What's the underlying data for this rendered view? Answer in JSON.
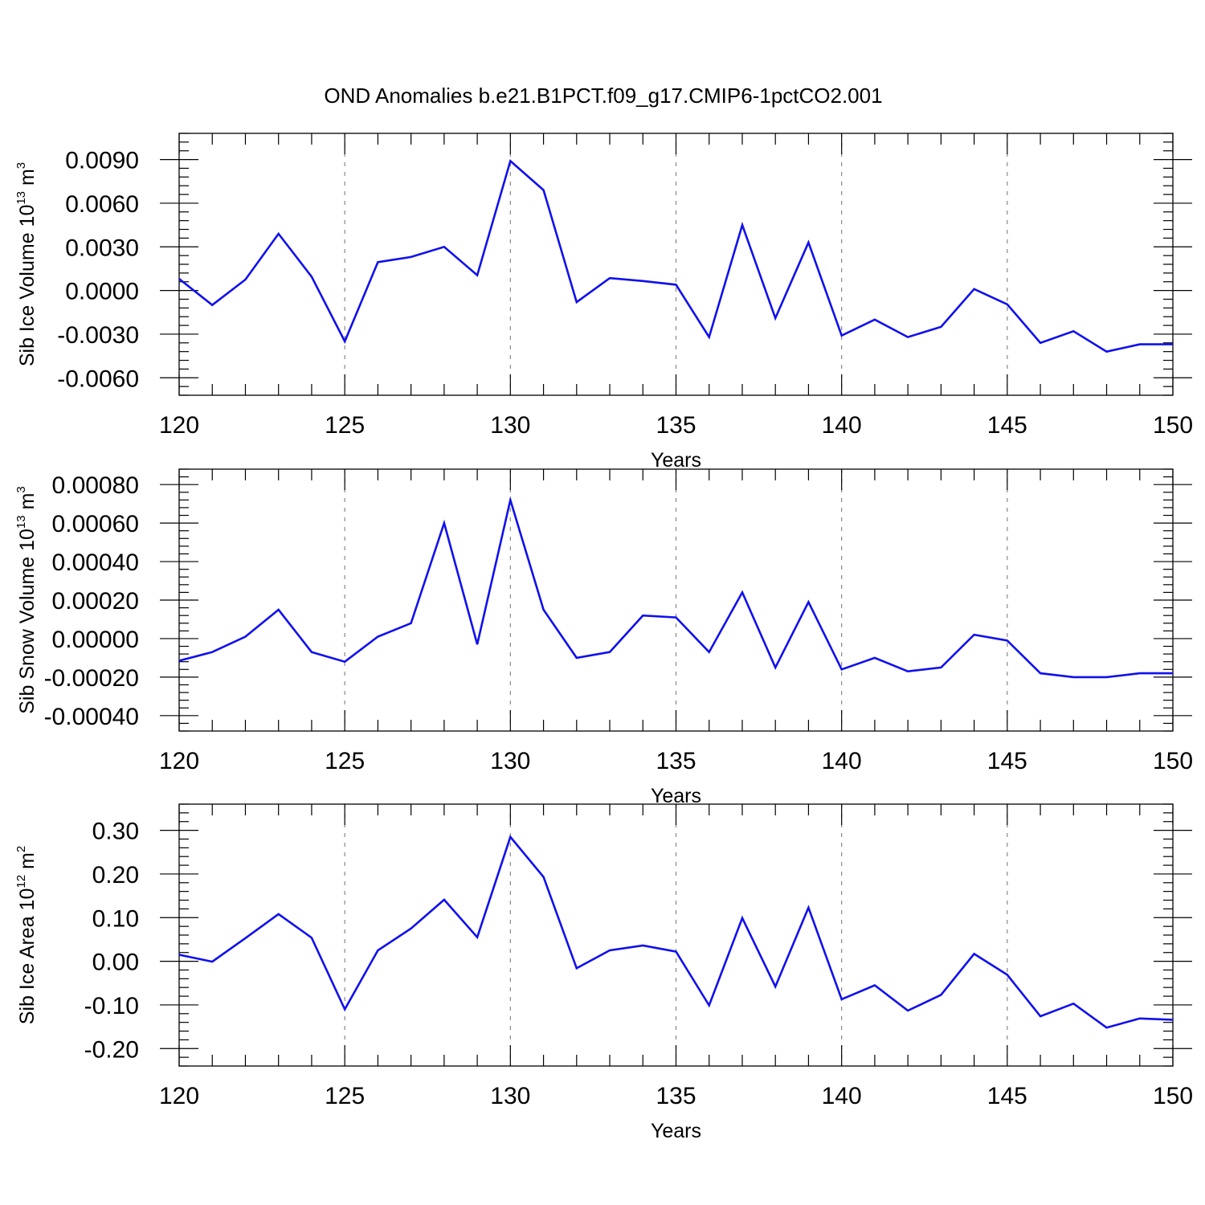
{
  "figure": {
    "title": "OND Anomalies b.e21.B1PCT.f09_g17.CMIP6-1pctCO2.001"
  },
  "colors": {
    "line": "#1010ee",
    "axis": "#000000",
    "grid": "#888888"
  },
  "chart_data": [
    {
      "type": "line",
      "xlabel": "Years",
      "ylabel": {
        "prefix": "Sib Ice Volume 10",
        "exp": "13",
        "unit": " m",
        "unit_exp": "3"
      },
      "xlim": [
        120,
        150
      ],
      "ylim": [
        -0.0072,
        0.0108
      ],
      "xticks": [
        120,
        125,
        130,
        135,
        140,
        145,
        150
      ],
      "xtick_labels": [
        "120",
        "125",
        "130",
        "135",
        "140",
        "145",
        "150"
      ],
      "yticks": [
        -0.006,
        -0.003,
        0.0,
        0.003,
        0.006,
        0.009
      ],
      "ytick_labels": [
        "-0.0060",
        "-0.0030",
        "0.0000",
        "0.0030",
        "0.0060",
        "0.0090"
      ],
      "grid": "vertical dashed at labeled x ticks",
      "x": [
        120,
        121,
        122,
        123,
        124,
        125,
        126,
        127,
        128,
        129,
        130,
        131,
        132,
        133,
        134,
        135,
        136,
        137,
        138,
        139,
        140,
        141,
        142,
        143,
        144,
        145,
        146,
        147,
        148,
        149,
        150
      ],
      "series": [
        {
          "values": [
            0.0008,
            -0.001,
            0.00075,
            0.0039,
            0.00095,
            -0.0035,
            0.00195,
            0.0023,
            0.003,
            0.00105,
            0.0089,
            0.0069,
            -0.0008,
            0.00085,
            0.00065,
            0.0004,
            -0.0032,
            0.0045,
            -0.0019,
            0.0033,
            -0.0031,
            -0.002,
            -0.0032,
            -0.0025,
            0.0001,
            -0.00095,
            -0.0036,
            -0.0028,
            -0.0042,
            -0.0037,
            -0.0037
          ]
        }
      ]
    },
    {
      "type": "line",
      "xlabel": "Years",
      "ylabel": {
        "prefix": "Sib Snow Volume 10",
        "exp": "13",
        "unit": " m",
        "unit_exp": "3"
      },
      "xlim": [
        120,
        150
      ],
      "ylim": [
        -0.00048,
        0.00088
      ],
      "xticks": [
        120,
        125,
        130,
        135,
        140,
        145,
        150
      ],
      "xtick_labels": [
        "120",
        "125",
        "130",
        "135",
        "140",
        "145",
        "150"
      ],
      "yticks": [
        -0.0004,
        -0.0002,
        0.0,
        0.0002,
        0.0004,
        0.0006,
        0.0008
      ],
      "ytick_labels": [
        "-0.00040",
        "-0.00020",
        "0.00000",
        "0.00020",
        "0.00040",
        "0.00060",
        "0.00080"
      ],
      "grid": "vertical dashed at labeled x ticks",
      "x": [
        120,
        121,
        122,
        123,
        124,
        125,
        126,
        127,
        128,
        129,
        130,
        131,
        132,
        133,
        134,
        135,
        136,
        137,
        138,
        139,
        140,
        141,
        142,
        143,
        144,
        145,
        146,
        147,
        148,
        149,
        150
      ],
      "series": [
        {
          "values": [
            -0.000115,
            -7e-05,
            1e-05,
            0.00015,
            -7e-05,
            -0.00012,
            1e-05,
            8e-05,
            0.0006,
            -3e-05,
            0.00072,
            0.00015,
            -0.0001,
            -7e-05,
            0.00012,
            0.00011,
            -7e-05,
            0.00024,
            -0.00015,
            0.00019,
            -0.00016,
            -0.0001,
            -0.00017,
            -0.00015,
            2e-05,
            -1e-05,
            -0.00018,
            -0.0002,
            -0.0002,
            -0.00018,
            -0.00018
          ]
        }
      ]
    },
    {
      "type": "line",
      "xlabel": "Years",
      "ylabel": {
        "prefix": "Sib Ice Area 10",
        "exp": "12",
        "unit": " m",
        "unit_exp": "2"
      },
      "xlim": [
        120,
        150
      ],
      "ylim": [
        -0.24,
        0.36
      ],
      "xticks": [
        120,
        125,
        130,
        135,
        140,
        145,
        150
      ],
      "xtick_labels": [
        "120",
        "125",
        "130",
        "135",
        "140",
        "145",
        "150"
      ],
      "yticks": [
        -0.2,
        -0.1,
        0.0,
        0.1,
        0.2,
        0.3
      ],
      "ytick_labels": [
        "-0.20",
        "-0.10",
        "0.00",
        "0.10",
        "0.20",
        "0.30"
      ],
      "grid": "vertical dashed at labeled x ticks",
      "x": [
        120,
        121,
        122,
        123,
        124,
        125,
        126,
        127,
        128,
        129,
        130,
        131,
        132,
        133,
        134,
        135,
        136,
        137,
        138,
        139,
        140,
        141,
        142,
        143,
        144,
        145,
        146,
        147,
        148,
        149,
        150
      ],
      "series": [
        {
          "values": [
            0.015,
            -0.001,
            0.053,
            0.108,
            0.054,
            -0.11,
            0.025,
            0.075,
            0.141,
            0.055,
            0.285,
            0.193,
            -0.016,
            0.025,
            0.036,
            0.022,
            -0.101,
            0.099,
            -0.058,
            0.123,
            -0.087,
            -0.055,
            -0.113,
            -0.077,
            0.017,
            -0.031,
            -0.126,
            -0.097,
            -0.152,
            -0.131,
            -0.134
          ]
        }
      ]
    }
  ]
}
